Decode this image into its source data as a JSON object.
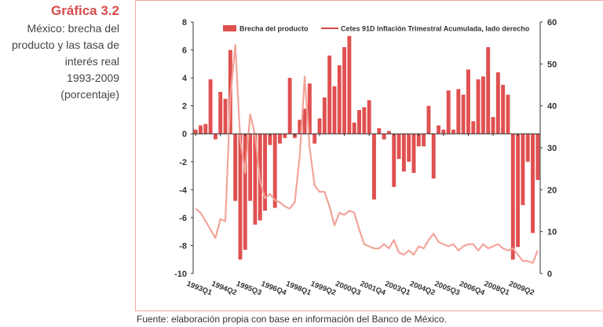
{
  "caption": {
    "title": "Gráfica 3.2",
    "lines": [
      "México: brecha del",
      "producto y las tasa de",
      "interés real",
      "1993-2009",
      "(porcentaje)"
    ]
  },
  "source": "Fuente: elaboración propia con base en información del Banco de México.",
  "colors": {
    "bar": "#e05050",
    "line": "#f2a49a",
    "accent": "#d64b4b"
  },
  "chart_data": {
    "type": "bar",
    "legend": [
      {
        "label": "Brecha del producto",
        "kind": "bar"
      },
      {
        "label": "Cetes 91D Inflación Trimestral  Acumulada, lado derecho",
        "kind": "line"
      }
    ],
    "legend_position": "top",
    "grid": false,
    "ylim": [
      -10,
      8
    ],
    "yticks": [
      8,
      6,
      4,
      2,
      0,
      -2,
      -4,
      -6,
      -8,
      -10
    ],
    "y2lim": [
      0,
      60
    ],
    "y2ticks": [
      60,
      50,
      40,
      30,
      20,
      10,
      0
    ],
    "xtick_labels": [
      "1993Q1",
      "1994Q2",
      "1995Q3",
      "1996Q4",
      "1998Q1",
      "1999Q2",
      "2000Q3",
      "2001Q4",
      "2003Q1",
      "2004Q2",
      "2005Q3",
      "2006Q4",
      "2008Q1",
      "2009Q2"
    ],
    "xtick_every": 5,
    "series": [
      {
        "name": "Brecha del producto",
        "kind": "bar",
        "values": [
          0.3,
          0.6,
          0.7,
          3.9,
          -0.4,
          3.0,
          2.5,
          6.0,
          -4.8,
          -9.0,
          -8.3,
          -4.8,
          -6.5,
          -6.2,
          -5.5,
          -0.8,
          -5.3,
          -0.7,
          -0.3,
          4.0,
          -0.3,
          1.0,
          1.8,
          3.6,
          -0.7,
          1.1,
          2.6,
          5.6,
          3.4,
          4.9,
          6.2,
          7.0,
          0.8,
          1.7,
          1.9,
          2.4,
          -4.7,
          0.4,
          -0.4,
          0.2,
          -3.8,
          -1.8,
          -2.7,
          -2.0,
          -2.8,
          -0.9,
          -0.9,
          2.0,
          -3.2,
          0.6,
          0.3,
          3.1,
          0.3,
          3.2,
          2.8,
          4.6,
          0.9,
          3.9,
          4.1,
          6.2,
          1.2,
          4.4,
          3.5,
          2.8,
          -9.0,
          -8.1,
          -5.1,
          -2.0,
          -7.1,
          -3.3
        ]
      },
      {
        "name": "Cetes 91D Inflación Trimestral  Acumulada, lado derecho",
        "kind": "line",
        "axis": "right",
        "values": [
          15.5,
          14.5,
          12.5,
          10.5,
          8.5,
          13.0,
          12.5,
          42.0,
          54.5,
          32.0,
          24.0,
          38.0,
          33.0,
          22.0,
          18.0,
          19.0,
          17.5,
          17.0,
          16.0,
          15.5,
          17.0,
          28.0,
          47.0,
          30.0,
          21.0,
          19.5,
          19.5,
          16.0,
          11.5,
          14.5,
          14.0,
          15.0,
          14.5,
          10.5,
          7.0,
          6.5,
          6.0,
          6.0,
          7.0,
          6.0,
          8.0,
          5.0,
          4.5,
          5.5,
          4.5,
          6.5,
          6.0,
          8.0,
          9.5,
          7.5,
          7.0,
          6.5,
          7.0,
          5.5,
          6.5,
          7.0,
          7.0,
          5.5,
          7.0,
          6.0,
          6.5,
          7.0,
          6.0,
          5.5,
          6.0,
          4.5,
          3.0,
          3.0,
          2.5,
          5.5
        ]
      }
    ]
  }
}
